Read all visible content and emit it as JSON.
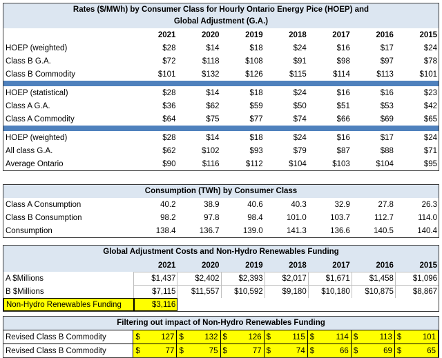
{
  "rates": {
    "title_line1": "Rates ($/MWh) by Consumer Class for Hourly Ontario Energy Pice (HOEP) and",
    "title_line2": "Global Adjustment (G.A.)",
    "years": [
      "2021",
      "2020",
      "2019",
      "2018",
      "2017",
      "2016",
      "2015"
    ],
    "group1": [
      {
        "label": "HOEP (weighted)",
        "values": [
          "$28",
          "$14",
          "$18",
          "$24",
          "$16",
          "$17",
          "$24"
        ]
      },
      {
        "label": "Class B G.A.",
        "values": [
          "$72",
          "$118",
          "$108",
          "$91",
          "$98",
          "$97",
          "$78"
        ]
      },
      {
        "label": "Class B Commodity",
        "values": [
          "$101",
          "$132",
          "$126",
          "$115",
          "$114",
          "$113",
          "$101"
        ]
      }
    ],
    "group2": [
      {
        "label": "HOEP (statistical)",
        "values": [
          "$28",
          "$14",
          "$18",
          "$24",
          "$16",
          "$16",
          "$23"
        ]
      },
      {
        "label": "Class A G.A.",
        "values": [
          "$36",
          "$62",
          "$59",
          "$50",
          "$51",
          "$53",
          "$42"
        ]
      },
      {
        "label": "Class A Commodity",
        "values": [
          "$64",
          "$75",
          "$77",
          "$74",
          "$66",
          "$69",
          "$65"
        ]
      }
    ],
    "group3": [
      {
        "label": "HOEP (weighted)",
        "values": [
          "$28",
          "$14",
          "$18",
          "$24",
          "$16",
          "$17",
          "$24"
        ]
      },
      {
        "label": "All class G.A.",
        "values": [
          "$62",
          "$102",
          "$93",
          "$79",
          "$87",
          "$88",
          "$71"
        ]
      },
      {
        "label": "Average Ontario",
        "values": [
          "$90",
          "$116",
          "$112",
          "$104",
          "$103",
          "$104",
          "$95"
        ]
      }
    ]
  },
  "consumption": {
    "title": "Consumption (TWh) by Consumer Class",
    "rows": [
      {
        "label": "Class A Consumption",
        "values": [
          "40.2",
          "38.9",
          "40.6",
          "40.3",
          "32.9",
          "27.8",
          "26.3"
        ]
      },
      {
        "label": "Class B Consumption",
        "values": [
          "98.2",
          "97.8",
          "98.4",
          "101.0",
          "103.7",
          "112.7",
          "114.0"
        ]
      },
      {
        "label": "Consumption",
        "values": [
          "138.4",
          "136.7",
          "139.0",
          "141.3",
          "136.6",
          "140.5",
          "140.4"
        ]
      }
    ]
  },
  "ga_costs": {
    "title": "Global Adjustment Costs and Non-Hydro Renewables Funding",
    "years": [
      "2021",
      "2020",
      "2019",
      "2018",
      "2017",
      "2016",
      "2015"
    ],
    "rows": [
      {
        "label": "A $Millions",
        "values": [
          "$1,437",
          "$2,402",
          "$2,393",
          "$2,017",
          "$1,671",
          "$1,458",
          "$1,096"
        ]
      },
      {
        "label": "B $Millions",
        "values": [
          "$7,115",
          "$11,557",
          "$10,592",
          "$9,180",
          "$10,180",
          "$10,875",
          "$8,867"
        ]
      }
    ],
    "funding_label": "Non-Hydro Renewables Funding",
    "funding_value": "$3,116"
  },
  "filtering": {
    "title": "Filtering out impact of Non-Hydro Renewables Funding",
    "currency": "$",
    "rows": [
      {
        "label": "Revised Class B Commodity",
        "values": [
          "127",
          "132",
          "126",
          "115",
          "114",
          "113",
          "101"
        ]
      },
      {
        "label": "Revised Class B Commodity",
        "values": [
          "77",
          "75",
          "77",
          "74",
          "66",
          "69",
          "65"
        ]
      }
    ]
  },
  "colors": {
    "header_fill": "#dce6f1",
    "separator": "#4f81bd",
    "highlight": "#ffff00"
  }
}
